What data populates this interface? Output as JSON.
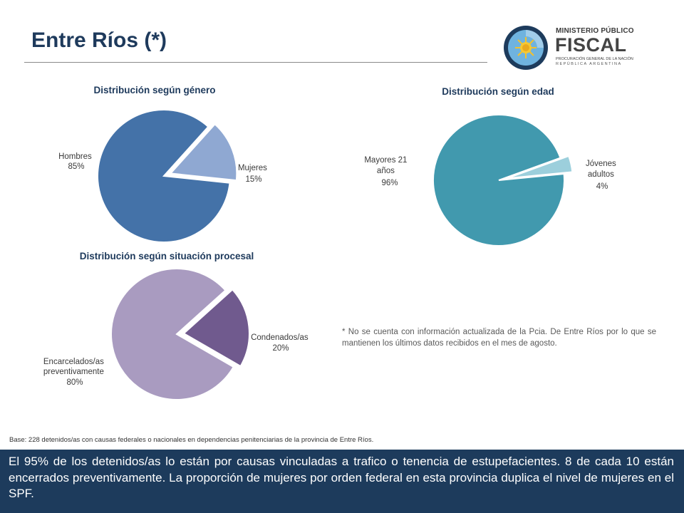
{
  "page": {
    "title": "Entre Ríos (*)",
    "logo": {
      "line1": "MINISTERIO PÚBLICO",
      "line2": "FISCAL",
      "line3": "PROCURACIÓN GENERAL DE LA NACIÓN",
      "line4": "REPÚBLICA ARGENTINA"
    },
    "note": "* No se cuenta con información actualizada de la Pcia. De Entre Ríos por lo que se mantienen los últimos datos recibidos en el mes de agosto.",
    "base": "Base: 228 detenidos/as con causas federales o nacionales en dependencias penitenciarias de la provincia de Entre Ríos.",
    "footer": "El 95% de los detenidos/as lo están por causas vinculadas a trafico o tenencia de estupefacientes. 8 de cada 10 están encerrados preventivamente. La proporción de mujeres por orden federal en esta provincia duplica el nivel de mujeres en el SPF."
  },
  "chart_data": [
    {
      "type": "pie",
      "title": "Distribución según género",
      "slices": [
        {
          "label": "Hombres",
          "value": 85,
          "value_label": "85%",
          "color": "#4472a8"
        },
        {
          "label": "Mujeres",
          "value": 15,
          "value_label": "15%",
          "color": "#8fa8d2",
          "exploded": true
        }
      ]
    },
    {
      "type": "pie",
      "title": "Distribución según edad",
      "slices": [
        {
          "label": "Mayores 21 años",
          "value": 96,
          "value_label": "96%",
          "color": "#4199ae"
        },
        {
          "label": "Jóvenes adultos",
          "value": 4,
          "value_label": "4%",
          "color": "#9ccfdc",
          "exploded": true
        }
      ]
    },
    {
      "type": "pie",
      "title": "Distribución según situación procesal",
      "slices": [
        {
          "label": "Encarcelados/as preventivamente",
          "value": 80,
          "value_label": "80%",
          "color": "#a99bc0"
        },
        {
          "label": "Condenados/as",
          "value": 20,
          "value_label": "20%",
          "color": "#705a8e",
          "exploded": true
        }
      ]
    }
  ]
}
